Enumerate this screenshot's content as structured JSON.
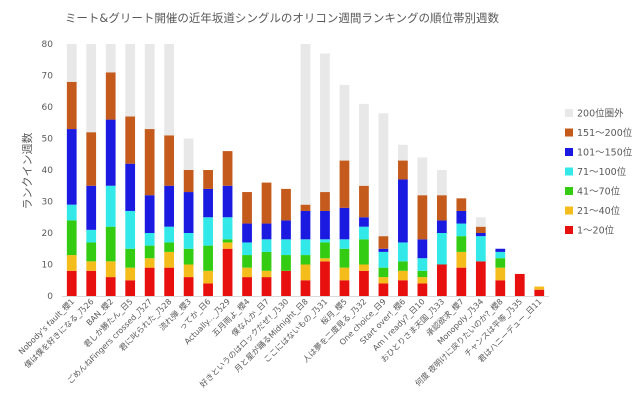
{
  "chart_data": {
    "type": "bar",
    "stacked": true,
    "title": "ミート&グリート開催の近年坂道シングルのオリコン週間ランキングの順位帯別週数",
    "xlabel": "",
    "ylabel": "ランクイン週数",
    "ylim": [
      0,
      80
    ],
    "yticks": [
      0,
      10,
      20,
      30,
      40,
      50,
      60,
      70,
      80
    ],
    "grid": false,
    "legend_position": "right",
    "categories": [
      "Nobody's fault_櫻1",
      "僕は僕を好きになる_乃26",
      "BAN_櫻2",
      "君しか勝たん_日5",
      "ごめんねFingers crossed_乃27",
      "君に叱られた_乃28",
      "流れ弾_櫻3",
      "ってか_日6",
      "Actually..._乃29",
      "五月雨よ_櫻4",
      "僕なんか_日7",
      "好きというのはロックだぜ!_乃30",
      "月と星が踊るMidnight_日8",
      "ここにはないもの_乃31",
      "桜月_櫻5",
      "人は夢を二度見る_乃32",
      "One choice_日9",
      "Start over!_櫻6",
      "Am I ready?_日10",
      "おひとりさま天国_乃33",
      "承認欲求_櫻7",
      "Monopoly_乃34",
      "何度 夜明けに戻りたいのか?_櫻8",
      "チャンスは平等_乃35",
      "君はハニーデュー_日11"
    ],
    "series": [
      {
        "name": "1〜20位",
        "color": "#e8100f",
        "values": [
          8,
          8,
          6,
          5,
          9,
          9,
          6,
          4,
          15,
          6,
          6,
          8,
          5,
          11,
          5,
          8,
          4,
          5,
          4,
          10,
          9,
          11,
          5,
          7,
          2
        ]
      },
      {
        "name": "21〜40位",
        "color": "#f5bd1c",
        "values": [
          5,
          3,
          5,
          4,
          3,
          5,
          4,
          4,
          2,
          3,
          2,
          0,
          5,
          1,
          4,
          2,
          2,
          3,
          2,
          0,
          5,
          0,
          4,
          0,
          1
        ]
      },
      {
        "name": "41〜70位",
        "color": "#33cc12",
        "values": [
          11,
          6,
          11,
          6,
          4,
          3,
          5,
          8,
          1,
          4,
          6,
          5,
          3,
          5,
          6,
          8,
          3,
          3,
          2,
          0,
          5,
          0,
          3,
          0,
          0
        ]
      },
      {
        "name": "71〜100位",
        "color": "#33e8e8",
        "values": [
          5,
          4,
          13,
          12,
          4,
          5,
          5,
          9,
          7,
          4,
          4,
          5,
          5,
          1,
          3,
          4,
          5,
          6,
          4,
          10,
          4,
          8,
          2,
          0,
          0
        ]
      },
      {
        "name": "101〜150位",
        "color": "#1a1ae0",
        "values": [
          24,
          14,
          21,
          15,
          12,
          13,
          13,
          9,
          10,
          6,
          5,
          6,
          9,
          9,
          10,
          3,
          1,
          20,
          6,
          4,
          4,
          1,
          1,
          0,
          0
        ]
      },
      {
        "name": "151〜200位",
        "color": "#c45a1c",
        "values": [
          15,
          17,
          15,
          15,
          21,
          16,
          7,
          6,
          11,
          10,
          13,
          10,
          2,
          6,
          15,
          10,
          4,
          6,
          14,
          8,
          4,
          2,
          0,
          0,
          0
        ]
      },
      {
        "name": "200位圏外",
        "color": "#e8e8e8",
        "values": [
          12,
          28,
          9,
          23,
          27,
          29,
          10,
          0,
          0,
          0,
          0,
          0,
          51,
          44,
          24,
          26,
          39,
          5,
          12,
          8,
          0,
          3,
          0,
          0,
          0
        ]
      }
    ],
    "legend_order": [
      "200位圏外",
      "151〜200位",
      "101〜150位",
      "71〜100位",
      "41〜70位",
      "21〜40位",
      "1〜20位"
    ]
  }
}
